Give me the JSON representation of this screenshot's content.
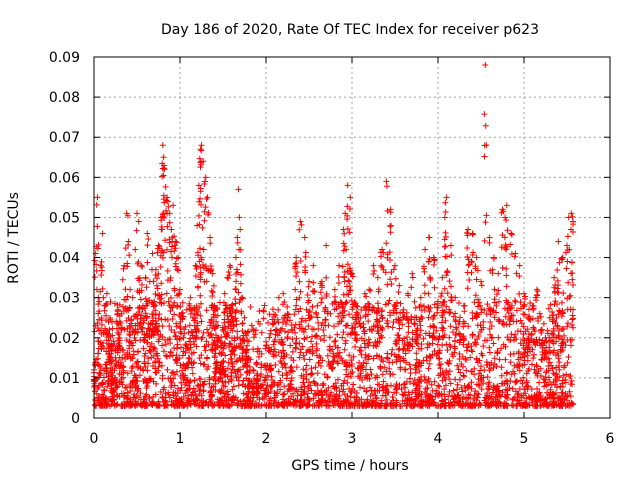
{
  "chart_data": {
    "type": "scatter",
    "title": "Day 186 of 2020, Rate Of TEC Index for receiver p623",
    "xlabel": "GPS time / hours",
    "ylabel": "ROTI / TECUs",
    "xlim": [
      0,
      6
    ],
    "ylim": [
      0,
      0.09
    ],
    "xticks": [
      0,
      1,
      2,
      3,
      4,
      5,
      6
    ],
    "xtick_labels": [
      "0",
      "1",
      "2",
      "3",
      "4",
      "5",
      "6"
    ],
    "yticks": [
      0,
      0.01,
      0.02,
      0.03,
      0.04,
      0.05,
      0.06,
      0.07,
      0.08,
      0.09
    ],
    "ytick_labels": [
      "0",
      "0.01",
      "0.02",
      "0.03",
      "0.04",
      "0.05",
      "0.06",
      "0.07",
      "0.08",
      "0.09"
    ],
    "grid": true,
    "marker": "+",
    "color": "#ff0000",
    "series": [
      {
        "name": "ROTI",
        "x": [
          0.0,
          0.02,
          0.04,
          0.05,
          0.08,
          0.1,
          0.12,
          0.15,
          0.18,
          0.2,
          0.22,
          0.25,
          0.28,
          0.3,
          0.33,
          0.35,
          0.38,
          0.4,
          0.42,
          0.45,
          0.48,
          0.5,
          0.52,
          0.55,
          0.58,
          0.6,
          0.62,
          0.65,
          0.68,
          0.7,
          0.72,
          0.75,
          0.78,
          0.8,
          0.81,
          0.82,
          0.85,
          0.88,
          0.9,
          0.92,
          0.95,
          0.98,
          1.0,
          1.02,
          1.05,
          1.08,
          1.1,
          1.12,
          1.15,
          1.18,
          1.2,
          1.22,
          1.24,
          1.25,
          1.27,
          1.3,
          1.32,
          1.35,
          1.38,
          1.4,
          1.42,
          1.45,
          1.48,
          1.5,
          1.52,
          1.55,
          1.58,
          1.6,
          1.62,
          1.65,
          1.68,
          1.7,
          1.72,
          1.75,
          1.78,
          1.8,
          1.85,
          1.9,
          1.95,
          2.0,
          2.05,
          2.1,
          2.15,
          2.2,
          2.25,
          2.3,
          2.35,
          2.4,
          2.45,
          2.5,
          2.55,
          2.6,
          2.65,
          2.7,
          2.75,
          2.8,
          2.85,
          2.9,
          2.92,
          2.95,
          2.98,
          3.0,
          3.05,
          3.1,
          3.15,
          3.2,
          3.25,
          3.3,
          3.35,
          3.4,
          3.45,
          3.5,
          3.55,
          3.6,
          3.65,
          3.7,
          3.75,
          3.8,
          3.85,
          3.9,
          3.95,
          4.0,
          4.05,
          4.08,
          4.1,
          4.15,
          4.2,
          4.25,
          4.3,
          4.35,
          4.4,
          4.45,
          4.5,
          4.55,
          4.6,
          4.65,
          4.7,
          4.75,
          4.78,
          4.8,
          4.85,
          4.9,
          4.95,
          5.0,
          5.05,
          5.1,
          5.15,
          5.2,
          5.25,
          5.3,
          5.35,
          5.4,
          5.45,
          5.5,
          5.52,
          5.55,
          5.57
        ],
        "y": [
          0.012,
          0.041,
          0.055,
          0.03,
          0.038,
          0.046,
          0.028,
          0.031,
          0.022,
          0.018,
          0.009,
          0.015,
          0.027,
          0.024,
          0.017,
          0.038,
          0.051,
          0.044,
          0.032,
          0.03,
          0.042,
          0.051,
          0.049,
          0.038,
          0.025,
          0.035,
          0.046,
          0.034,
          0.041,
          0.029,
          0.037,
          0.043,
          0.05,
          0.068,
          0.065,
          0.062,
          0.055,
          0.051,
          0.047,
          0.053,
          0.044,
          0.04,
          0.032,
          0.026,
          0.021,
          0.018,
          0.015,
          0.03,
          0.025,
          0.038,
          0.048,
          0.058,
          0.067,
          0.068,
          0.064,
          0.06,
          0.055,
          0.045,
          0.036,
          0.028,
          0.024,
          0.02,
          0.018,
          0.022,
          0.031,
          0.035,
          0.038,
          0.028,
          0.024,
          0.04,
          0.057,
          0.047,
          0.03,
          0.025,
          0.018,
          0.015,
          0.012,
          0.011,
          0.016,
          0.019,
          0.021,
          0.024,
          0.03,
          0.031,
          0.026,
          0.022,
          0.04,
          0.049,
          0.045,
          0.034,
          0.038,
          0.028,
          0.034,
          0.043,
          0.026,
          0.032,
          0.038,
          0.047,
          0.051,
          0.058,
          0.055,
          0.036,
          0.028,
          0.025,
          0.031,
          0.032,
          0.038,
          0.035,
          0.042,
          0.059,
          0.052,
          0.038,
          0.033,
          0.027,
          0.031,
          0.036,
          0.025,
          0.03,
          0.042,
          0.045,
          0.04,
          0.029,
          0.035,
          0.05,
          0.055,
          0.043,
          0.03,
          0.024,
          0.028,
          0.047,
          0.046,
          0.04,
          0.034,
          0.088,
          0.045,
          0.04,
          0.036,
          0.052,
          0.05,
          0.053,
          0.046,
          0.041,
          0.038,
          0.031,
          0.025,
          0.028,
          0.032,
          0.022,
          0.02,
          0.025,
          0.035,
          0.044,
          0.04,
          0.043,
          0.05,
          0.051,
          0.049
        ]
      }
    ]
  }
}
